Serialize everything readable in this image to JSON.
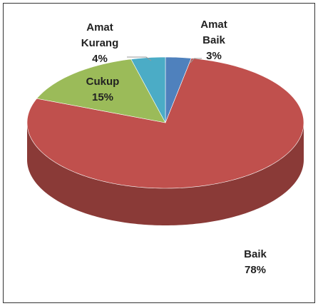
{
  "chart_data": {
    "type": "pie3d",
    "categories": [
      "Amat Baik",
      "Baik",
      "Cukup",
      "Amat Kurang"
    ],
    "values": [
      3,
      78,
      15,
      4
    ],
    "value_labels": [
      "3%",
      "78%",
      "15%",
      "4%"
    ],
    "colors": [
      "#4f81bd",
      "#c0504d",
      "#9bbb59",
      "#4bacc6"
    ]
  }
}
